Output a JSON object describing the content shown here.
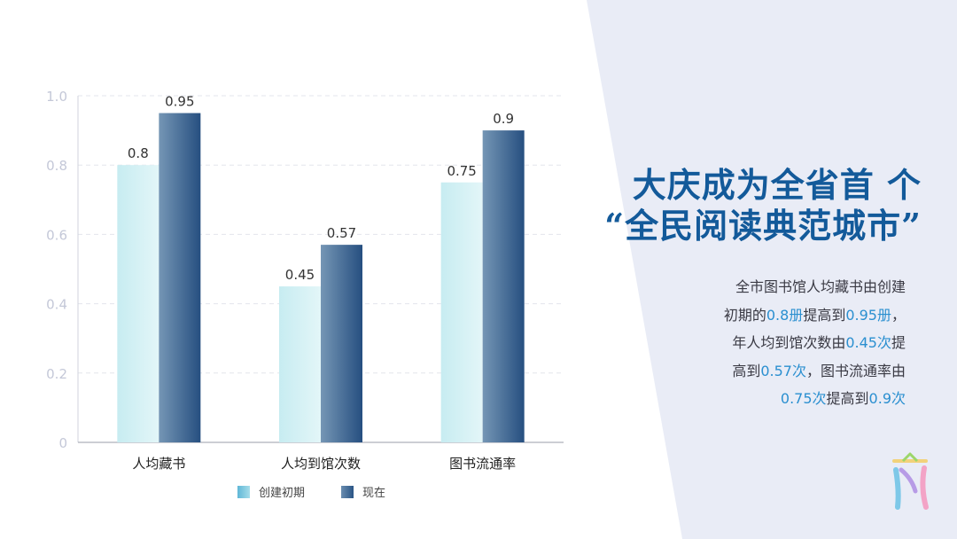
{
  "chart_data": {
    "type": "bar",
    "categories": [
      "人均藏书",
      "人均到馆次数",
      "图书流通率"
    ],
    "series": [
      {
        "name": "创建初期",
        "values": [
          0.8,
          0.45,
          0.75
        ],
        "labels": [
          "0.8",
          "0.45",
          "0.75"
        ]
      },
      {
        "name": "现在",
        "values": [
          0.95,
          0.57,
          0.9
        ],
        "labels": [
          "0.95",
          "0.57",
          "0.9"
        ]
      }
    ],
    "yticks": [
      "0",
      "0.2",
      "0.4",
      "0.6",
      "0.8",
      "1.0"
    ],
    "ylim": [
      0,
      1.0
    ],
    "grid": true,
    "legend": "bottom-center"
  },
  "headline": {
    "line1": "大庆成为全省首 个",
    "line2": "“全民阅读典范城市”"
  },
  "description": {
    "l1": "全市图书馆人均藏书由创建",
    "l2a": "初期的",
    "l2b": "0.8册",
    "l2c": "提高到",
    "l2d": "0.95册",
    "l2e": "，",
    "l3a": "年人均到馆次数由",
    "l3b": "0.45次",
    "l3c": "提",
    "l4a": "高到",
    "l4b": "0.57次",
    "l4c": "，图书流通率由",
    "l5a": "0.75次",
    "l5b": "提高到",
    "l5c": "0.9次"
  },
  "colors": {
    "panel": "#e9ecf6",
    "headline": "#135a9a",
    "highlight": "#2a8fd0",
    "series1": "#bfe7ef",
    "series2": "#2e5b8d",
    "axis_text": "#c4c8d8"
  }
}
